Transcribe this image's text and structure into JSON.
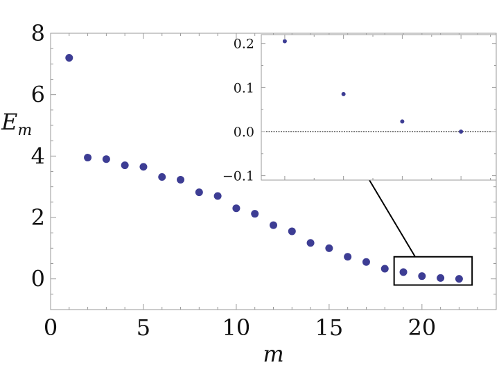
{
  "chart_data": [
    {
      "type": "scatter",
      "xlabel": "m",
      "ylabel_base": "E",
      "ylabel_sub": "m",
      "xlim": [
        0,
        24
      ],
      "ylim": [
        -1,
        8
      ],
      "xticks": [
        0,
        5,
        10,
        15,
        20
      ],
      "xtick_labels": [
        "0",
        "5",
        "10",
        "15",
        "20"
      ],
      "yticks": [
        0,
        2,
        4,
        6,
        8
      ],
      "ytick_labels": [
        "0",
        "2",
        "4",
        "6",
        "8"
      ],
      "grid": false,
      "marker_color": "#3d3d94",
      "x": [
        1,
        2,
        3,
        4,
        5,
        6,
        7,
        8,
        9,
        10,
        11,
        12,
        13,
        14,
        15,
        16,
        17,
        18,
        19,
        20,
        21,
        22
      ],
      "y": [
        7.2,
        3.95,
        3.9,
        3.7,
        3.65,
        3.32,
        3.23,
        2.82,
        2.7,
        2.3,
        2.12,
        1.75,
        1.55,
        1.17,
        1.0,
        0.72,
        0.55,
        0.33,
        0.22,
        0.09,
        0.03,
        0.0
      ],
      "zoom_box": {
        "x": [
          18.5,
          22.7
        ],
        "y": [
          -0.2,
          0.72
        ]
      }
    },
    {
      "type": "scatter",
      "role": "inset zoom of points m = 19 to 22",
      "xlim": [
        18.6,
        22.6
      ],
      "ylim": [
        -0.11,
        0.22
      ],
      "yticks": [
        -0.1,
        0.0,
        0.1,
        0.2
      ],
      "ytick_labels": [
        "−0.1",
        "0.0",
        "0.1",
        "0.2"
      ],
      "reference_line_y": 0,
      "marker_color": "#3d3d94",
      "x": [
        19,
        20,
        21,
        22
      ],
      "y": [
        0.205,
        0.085,
        0.023,
        0.0
      ]
    }
  ]
}
